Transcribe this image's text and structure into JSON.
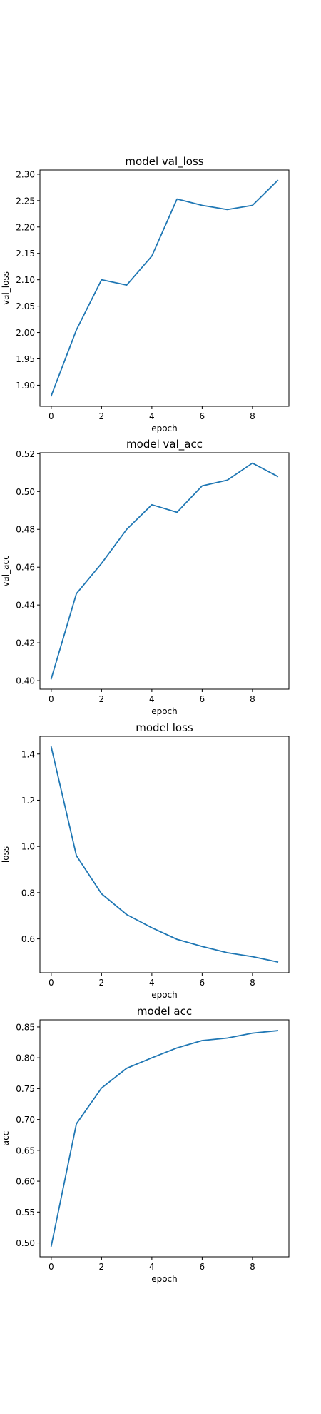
{
  "line_color": "#1f77b4",
  "chart_data": [
    {
      "type": "line",
      "title": "model val_loss",
      "xlabel": "epoch",
      "ylabel": "val_loss",
      "x": [
        0,
        1,
        2,
        3,
        4,
        5,
        6,
        7,
        8,
        9
      ],
      "series": [
        {
          "values": [
            1.88,
            2.005,
            2.1,
            2.09,
            2.145,
            2.253,
            2.241,
            2.233,
            2.241,
            2.288
          ]
        }
      ],
      "xlim": [
        -0.45,
        9.45
      ],
      "ylim": [
        1.86,
        2.308
      ],
      "xticks": [
        0,
        2,
        4,
        6,
        8
      ],
      "xtick_labels": [
        "0",
        "2",
        "4",
        "6",
        "8"
      ],
      "yticks": [
        1.9,
        1.95,
        2.0,
        2.05,
        2.1,
        2.15,
        2.2,
        2.25,
        2.3
      ],
      "ytick_labels": [
        "1.90",
        "1.95",
        "2.00",
        "2.05",
        "2.10",
        "2.15",
        "2.20",
        "2.25",
        "2.30"
      ],
      "grid": false
    },
    {
      "type": "line",
      "title": "model val_acc",
      "xlabel": "epoch",
      "ylabel": "val_acc",
      "x": [
        0,
        1,
        2,
        3,
        4,
        5,
        6,
        7,
        8,
        9
      ],
      "series": [
        {
          "values": [
            0.401,
            0.446,
            0.462,
            0.48,
            0.493,
            0.489,
            0.503,
            0.506,
            0.515,
            0.508
          ]
        }
      ],
      "xlim": [
        -0.45,
        9.45
      ],
      "ylim": [
        0.3955,
        0.5205
      ],
      "xticks": [
        0,
        2,
        4,
        6,
        8
      ],
      "xtick_labels": [
        "0",
        "2",
        "4",
        "6",
        "8"
      ],
      "yticks": [
        0.4,
        0.42,
        0.44,
        0.46,
        0.48,
        0.5,
        0.52
      ],
      "ytick_labels": [
        "0.40",
        "0.42",
        "0.44",
        "0.46",
        "0.48",
        "0.50",
        "0.52"
      ],
      "grid": false
    },
    {
      "type": "line",
      "title": "model loss",
      "xlabel": "epoch",
      "ylabel": "loss",
      "x": [
        0,
        1,
        2,
        3,
        4,
        5,
        6,
        7,
        8,
        9
      ],
      "series": [
        {
          "values": [
            1.43,
            0.96,
            0.795,
            0.705,
            0.648,
            0.598,
            0.567,
            0.54,
            0.523,
            0.5
          ]
        }
      ],
      "xlim": [
        -0.45,
        9.45
      ],
      "ylim": [
        0.4535,
        1.4765
      ],
      "xticks": [
        0,
        2,
        4,
        6,
        8
      ],
      "xtick_labels": [
        "0",
        "2",
        "4",
        "6",
        "8"
      ],
      "yticks": [
        0.6,
        0.8,
        1.0,
        1.2,
        1.4
      ],
      "ytick_labels": [
        "0.6",
        "0.8",
        "1.0",
        "1.2",
        "1.4"
      ],
      "grid": false
    },
    {
      "type": "line",
      "title": "model acc",
      "xlabel": "epoch",
      "ylabel": "acc",
      "x": [
        0,
        1,
        2,
        3,
        4,
        5,
        6,
        7,
        8,
        9
      ],
      "series": [
        {
          "values": [
            0.495,
            0.693,
            0.751,
            0.783,
            0.8,
            0.816,
            0.828,
            0.832,
            0.84,
            0.844
          ]
        }
      ],
      "xlim": [
        -0.45,
        9.45
      ],
      "ylim": [
        0.4775,
        0.8615
      ],
      "xticks": [
        0,
        2,
        4,
        6,
        8
      ],
      "xtick_labels": [
        "0",
        "2",
        "4",
        "6",
        "8"
      ],
      "yticks": [
        0.5,
        0.55,
        0.6,
        0.65,
        0.7,
        0.75,
        0.8,
        0.85
      ],
      "ytick_labels": [
        "0.50",
        "0.55",
        "0.60",
        "0.65",
        "0.70",
        "0.75",
        "0.80",
        "0.85"
      ],
      "grid": false
    }
  ]
}
